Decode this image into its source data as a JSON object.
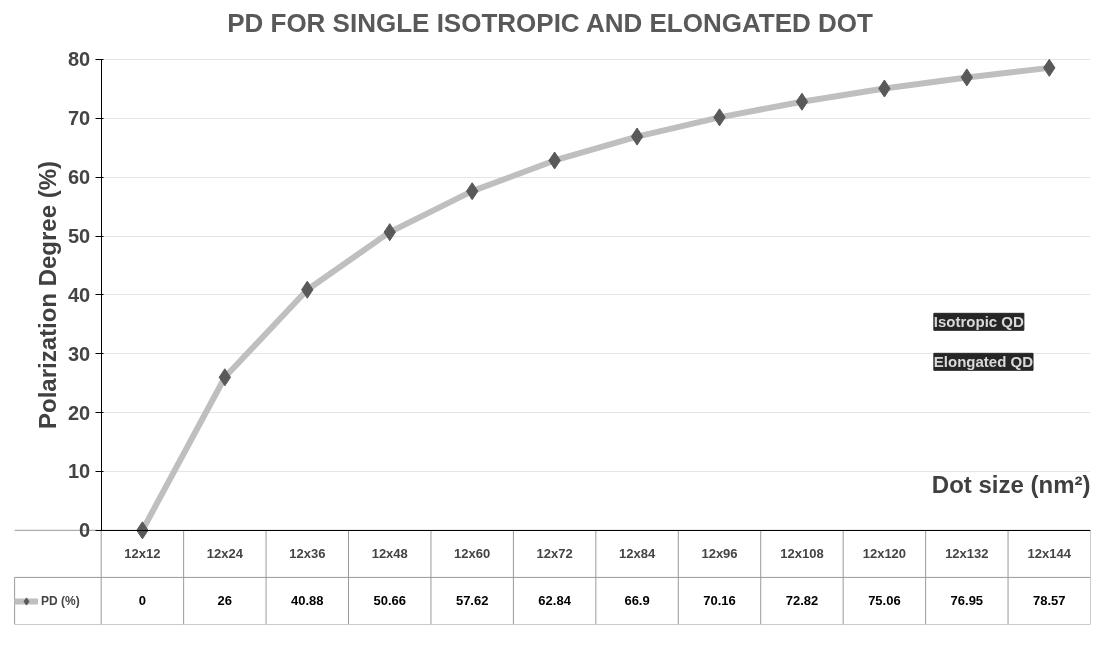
{
  "chart_data": {
    "type": "line",
    "title": "PD FOR SINGLE ISOTROPIC AND ELONGATED DOT",
    "xlabel": "Dot size (nm²)",
    "ylabel": "Polarization Degree (%)",
    "categories": [
      "12x12",
      "12x24",
      "12x36",
      "12x48",
      "12x60",
      "12x72",
      "12x84",
      "12x96",
      "12x108",
      "12x120",
      "12x132",
      "12x144"
    ],
    "series": [
      {
        "name": "PD (%)",
        "color": "#bfbfbf",
        "values": [
          0,
          26,
          40.88,
          50.66,
          57.62,
          62.84,
          66.9,
          70.16,
          72.82,
          75.06,
          76.95,
          78.57
        ]
      }
    ],
    "ylim": [
      0,
      80
    ],
    "yticks": [
      0,
      10,
      20,
      30,
      40,
      50,
      60,
      70,
      80
    ],
    "grid": "y",
    "marker": "diamond",
    "line_style": "solid",
    "data_labels": true,
    "legend": "bottom",
    "annotations": [
      "Isotropic QD",
      "Elongated QD"
    ]
  }
}
